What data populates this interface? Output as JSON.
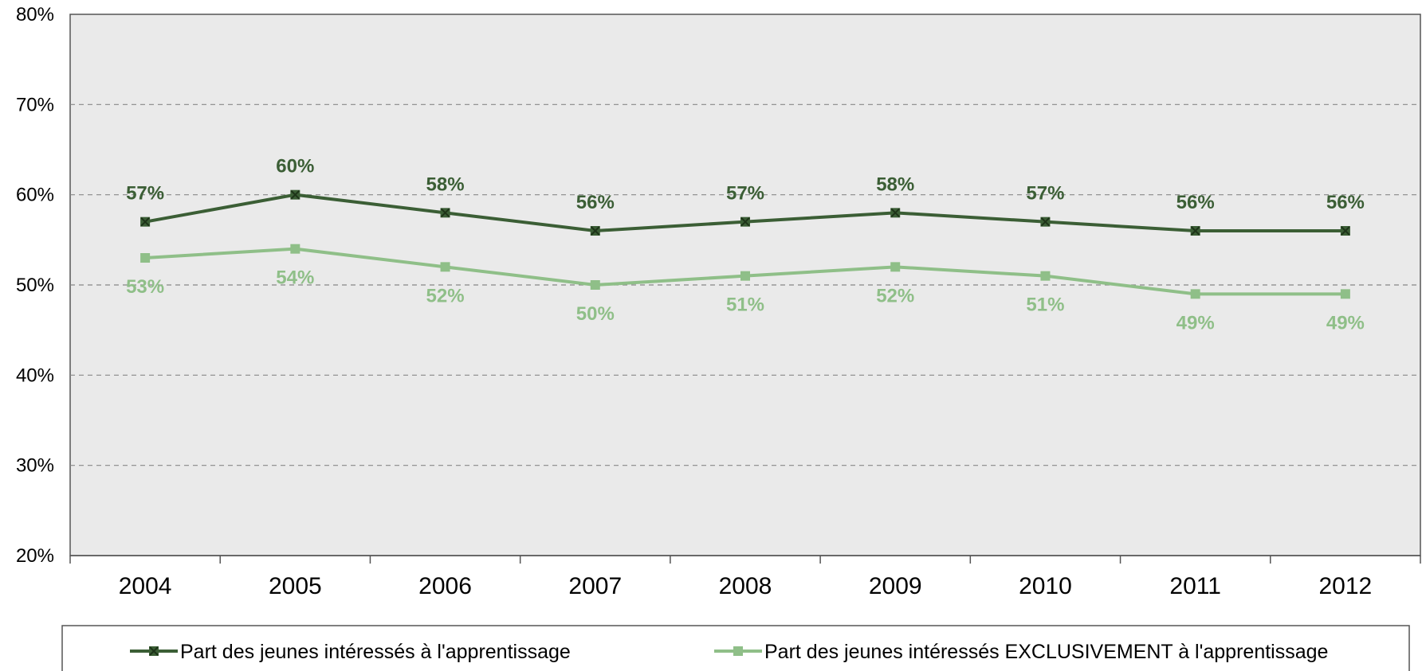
{
  "chart_data": {
    "type": "line",
    "title": "",
    "xlabel": "",
    "ylabel": "",
    "categories": [
      "2004",
      "2005",
      "2006",
      "2007",
      "2008",
      "2009",
      "2010",
      "2011",
      "2012"
    ],
    "ylim": [
      0.2,
      0.8
    ],
    "yticks": [
      0.2,
      0.3,
      0.4,
      0.5,
      0.6,
      0.7,
      0.8
    ],
    "ytick_labels": [
      "20%",
      "30%",
      "40%",
      "50%",
      "60%",
      "70%",
      "80%"
    ],
    "grid": true,
    "legend_position": "bottom",
    "series": [
      {
        "name": "Part des jeunes intéressés à l'apprentissage",
        "color": "#3b5e35",
        "marker": "square-x",
        "values": [
          0.57,
          0.6,
          0.58,
          0.56,
          0.57,
          0.58,
          0.57,
          0.56,
          0.56
        ],
        "labels": [
          "57%",
          "60%",
          "58%",
          "56%",
          "57%",
          "58%",
          "57%",
          "56%",
          "56%"
        ],
        "label_position": "above"
      },
      {
        "name": "Part des jeunes intéressés EXCLUSIVEMENT à l'apprentissage",
        "color": "#8fbf88",
        "marker": "square",
        "values": [
          0.53,
          0.54,
          0.52,
          0.5,
          0.51,
          0.52,
          0.51,
          0.49,
          0.49
        ],
        "labels": [
          "53%",
          "54%",
          "52%",
          "50%",
          "51%",
          "52%",
          "51%",
          "49%",
          "49%"
        ],
        "label_position": "below"
      }
    ]
  }
}
